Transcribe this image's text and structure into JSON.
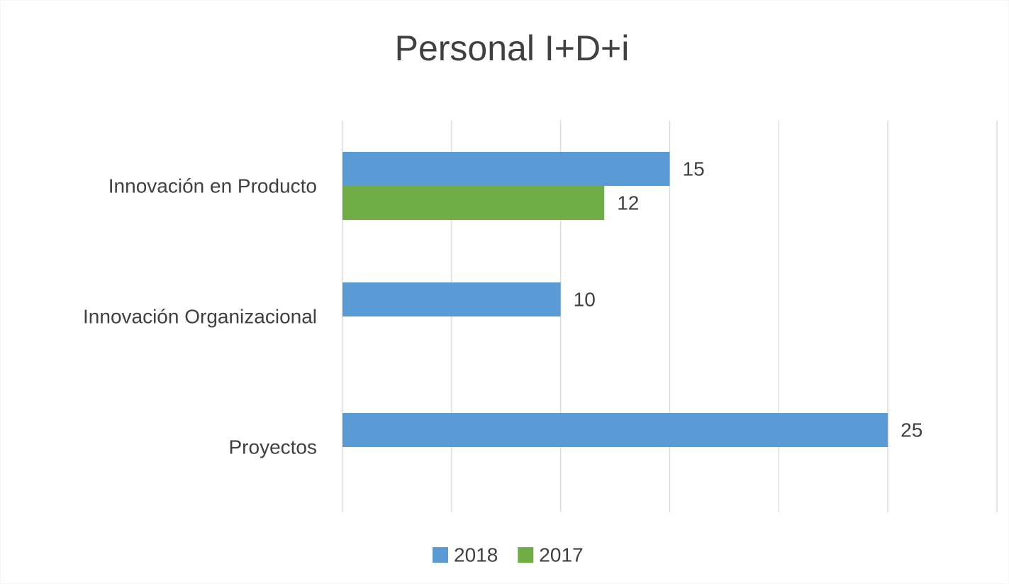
{
  "chart_data": {
    "type": "barh",
    "title": "Personal I+D+i",
    "categories": [
      "Innovación en Producto",
      "Innovación Organizacional",
      "Proyectos"
    ],
    "series": [
      {
        "name": "2018",
        "color": "#5b9bd5",
        "values": [
          15,
          10,
          25
        ]
      },
      {
        "name": "2017",
        "color": "#70ad47",
        "values": [
          12,
          null,
          null
        ]
      }
    ],
    "xlim": [
      0,
      30
    ],
    "xticks": [
      0,
      5,
      10,
      15,
      20,
      25,
      30
    ],
    "grid": true,
    "legend": "bottom"
  }
}
